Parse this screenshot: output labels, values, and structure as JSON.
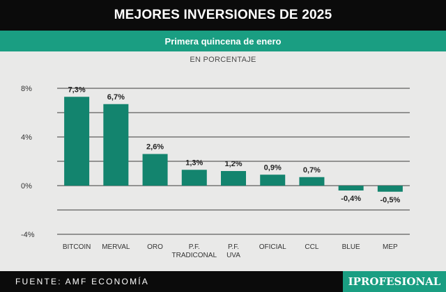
{
  "header": {
    "title": "MEJORES INVERSIONES DE 2025",
    "subtitle": "Primera quincena de enero",
    "unit": "EN PORCENTAJE"
  },
  "footer": {
    "source": "FUENTE: AMF ECONOMÍA",
    "brand": "IPROFESIONAL"
  },
  "colors": {
    "bar": "#13846e",
    "accent": "#1a9e82",
    "header_bg": "#0b0b0b"
  },
  "chart_data": {
    "type": "bar",
    "categories": [
      [
        "BITCOIN"
      ],
      [
        "MERVAL"
      ],
      [
        "ORO"
      ],
      [
        "P.F.",
        "TRADICONAL"
      ],
      [
        "P.F.",
        "UVA"
      ],
      [
        "OFICIAL"
      ],
      [
        "CCL"
      ],
      [
        "BLUE"
      ],
      [
        "MEP"
      ]
    ],
    "values": [
      7.3,
      6.7,
      2.6,
      1.3,
      1.2,
      0.9,
      0.7,
      -0.4,
      -0.5
    ],
    "value_labels": [
      "7,3%",
      "6,7%",
      "2,6%",
      "1,3%",
      "1,2%",
      "0,9%",
      "0,7%",
      "-0,4%",
      "-0,5%"
    ],
    "ylim": [
      -4,
      8
    ],
    "yticks": [
      8,
      4,
      0,
      -4
    ],
    "ytick_labels": [
      "8%",
      "4%",
      "0%",
      "-4%"
    ],
    "grid": true
  }
}
